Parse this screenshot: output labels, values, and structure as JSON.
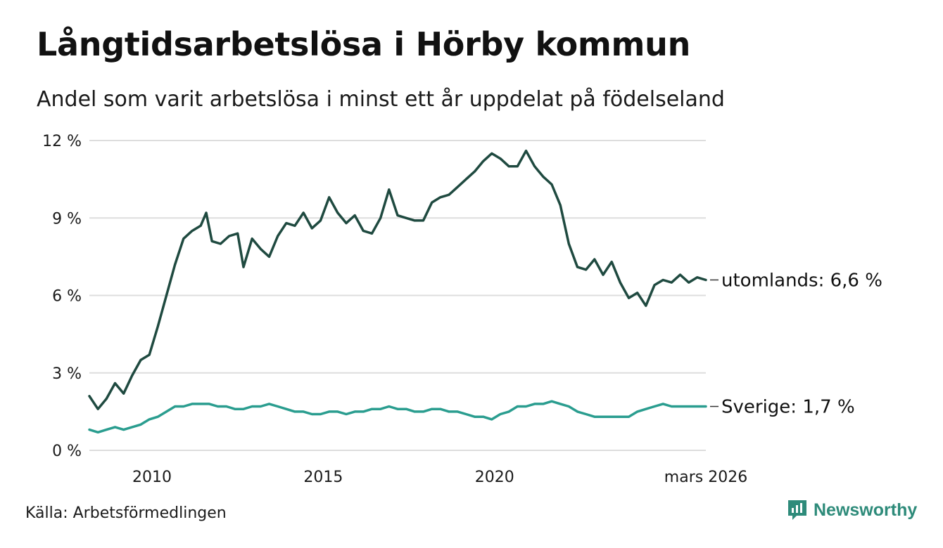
{
  "header": {
    "title": "Långtidsarbetslösa i Hörby kommun",
    "subtitle": "Andel som varit arbetslösa i minst ett år uppdelat på födelseland"
  },
  "footer": {
    "source": "Källa: Arbetsförmedlingen",
    "brand": "Newsworthy"
  },
  "colors": {
    "utomlands": "#1f4a40",
    "sverige": "#2a9d8f",
    "grid": "#dddddd",
    "brand": "#2e8b7a"
  },
  "chart_data": {
    "type": "line",
    "title": "Långtidsarbetslösa i Hörby kommun",
    "xlabel": "",
    "ylabel": "",
    "xlim": [
      2008.17,
      2026.17
    ],
    "ylim": [
      0,
      12
    ],
    "y_ticks": [
      0,
      3,
      6,
      9,
      12
    ],
    "y_tick_labels": [
      "0 %",
      "3 %",
      "6 %",
      "9 %",
      "12 %"
    ],
    "x_ticks": [
      2010,
      2015,
      2020,
      2026.17
    ],
    "x_tick_labels": [
      "2010",
      "2015",
      "2020",
      "mars 2026"
    ],
    "grid": true,
    "series": [
      {
        "name": "utomlands",
        "end_label": "utomlands: 6,6 %",
        "points": [
          [
            2008.17,
            2.1
          ],
          [
            2008.42,
            1.6
          ],
          [
            2008.67,
            2.0
          ],
          [
            2008.92,
            2.6
          ],
          [
            2009.17,
            2.2
          ],
          [
            2009.42,
            2.9
          ],
          [
            2009.67,
            3.5
          ],
          [
            2009.92,
            3.7
          ],
          [
            2010.17,
            4.8
          ],
          [
            2010.42,
            6.0
          ],
          [
            2010.67,
            7.2
          ],
          [
            2010.92,
            8.2
          ],
          [
            2011.17,
            8.5
          ],
          [
            2011.42,
            8.7
          ],
          [
            2011.58,
            9.2
          ],
          [
            2011.75,
            8.1
          ],
          [
            2012.0,
            8.0
          ],
          [
            2012.25,
            8.3
          ],
          [
            2012.5,
            8.4
          ],
          [
            2012.67,
            7.1
          ],
          [
            2012.92,
            8.2
          ],
          [
            2013.17,
            7.8
          ],
          [
            2013.42,
            7.5
          ],
          [
            2013.67,
            8.3
          ],
          [
            2013.92,
            8.8
          ],
          [
            2014.17,
            8.7
          ],
          [
            2014.42,
            9.2
          ],
          [
            2014.67,
            8.6
          ],
          [
            2014.92,
            8.9
          ],
          [
            2015.17,
            9.8
          ],
          [
            2015.42,
            9.2
          ],
          [
            2015.67,
            8.8
          ],
          [
            2015.92,
            9.1
          ],
          [
            2016.17,
            8.5
          ],
          [
            2016.42,
            8.4
          ],
          [
            2016.67,
            9.0
          ],
          [
            2016.92,
            10.1
          ],
          [
            2017.17,
            9.1
          ],
          [
            2017.42,
            9.0
          ],
          [
            2017.67,
            8.9
          ],
          [
            2017.92,
            8.9
          ],
          [
            2018.17,
            9.6
          ],
          [
            2018.42,
            9.8
          ],
          [
            2018.67,
            9.9
          ],
          [
            2018.92,
            10.2
          ],
          [
            2019.17,
            10.5
          ],
          [
            2019.42,
            10.8
          ],
          [
            2019.67,
            11.2
          ],
          [
            2019.92,
            11.5
          ],
          [
            2020.17,
            11.3
          ],
          [
            2020.42,
            11.0
          ],
          [
            2020.67,
            11.0
          ],
          [
            2020.92,
            11.6
          ],
          [
            2021.17,
            11.0
          ],
          [
            2021.42,
            10.6
          ],
          [
            2021.67,
            10.3
          ],
          [
            2021.92,
            9.5
          ],
          [
            2022.17,
            8.0
          ],
          [
            2022.42,
            7.1
          ],
          [
            2022.67,
            7.0
          ],
          [
            2022.92,
            7.4
          ],
          [
            2023.17,
            6.8
          ],
          [
            2023.42,
            7.3
          ],
          [
            2023.67,
            6.5
          ],
          [
            2023.92,
            5.9
          ],
          [
            2024.17,
            6.1
          ],
          [
            2024.42,
            5.6
          ],
          [
            2024.67,
            6.4
          ],
          [
            2024.92,
            6.6
          ],
          [
            2025.17,
            6.5
          ],
          [
            2025.42,
            6.8
          ],
          [
            2025.67,
            6.5
          ],
          [
            2025.92,
            6.7
          ],
          [
            2026.17,
            6.6
          ]
        ]
      },
      {
        "name": "Sverige",
        "end_label": "Sverige: 1,7 %",
        "points": [
          [
            2008.17,
            0.8
          ],
          [
            2008.42,
            0.7
          ],
          [
            2008.67,
            0.8
          ],
          [
            2008.92,
            0.9
          ],
          [
            2009.17,
            0.8
          ],
          [
            2009.42,
            0.9
          ],
          [
            2009.67,
            1.0
          ],
          [
            2009.92,
            1.2
          ],
          [
            2010.17,
            1.3
          ],
          [
            2010.42,
            1.5
          ],
          [
            2010.67,
            1.7
          ],
          [
            2010.92,
            1.7
          ],
          [
            2011.17,
            1.8
          ],
          [
            2011.42,
            1.8
          ],
          [
            2011.67,
            1.8
          ],
          [
            2011.92,
            1.7
          ],
          [
            2012.17,
            1.7
          ],
          [
            2012.42,
            1.6
          ],
          [
            2012.67,
            1.6
          ],
          [
            2012.92,
            1.7
          ],
          [
            2013.17,
            1.7
          ],
          [
            2013.42,
            1.8
          ],
          [
            2013.67,
            1.7
          ],
          [
            2013.92,
            1.6
          ],
          [
            2014.17,
            1.5
          ],
          [
            2014.42,
            1.5
          ],
          [
            2014.67,
            1.4
          ],
          [
            2014.92,
            1.4
          ],
          [
            2015.17,
            1.5
          ],
          [
            2015.42,
            1.5
          ],
          [
            2015.67,
            1.4
          ],
          [
            2015.92,
            1.5
          ],
          [
            2016.17,
            1.5
          ],
          [
            2016.42,
            1.6
          ],
          [
            2016.67,
            1.6
          ],
          [
            2016.92,
            1.7
          ],
          [
            2017.17,
            1.6
          ],
          [
            2017.42,
            1.6
          ],
          [
            2017.67,
            1.5
          ],
          [
            2017.92,
            1.5
          ],
          [
            2018.17,
            1.6
          ],
          [
            2018.42,
            1.6
          ],
          [
            2018.67,
            1.5
          ],
          [
            2018.92,
            1.5
          ],
          [
            2019.17,
            1.4
          ],
          [
            2019.42,
            1.3
          ],
          [
            2019.67,
            1.3
          ],
          [
            2019.92,
            1.2
          ],
          [
            2020.17,
            1.4
          ],
          [
            2020.42,
            1.5
          ],
          [
            2020.67,
            1.7
          ],
          [
            2020.92,
            1.7
          ],
          [
            2021.17,
            1.8
          ],
          [
            2021.42,
            1.8
          ],
          [
            2021.67,
            1.9
          ],
          [
            2021.92,
            1.8
          ],
          [
            2022.17,
            1.7
          ],
          [
            2022.42,
            1.5
          ],
          [
            2022.67,
            1.4
          ],
          [
            2022.92,
            1.3
          ],
          [
            2023.17,
            1.3
          ],
          [
            2023.42,
            1.3
          ],
          [
            2023.67,
            1.3
          ],
          [
            2023.92,
            1.3
          ],
          [
            2024.17,
            1.5
          ],
          [
            2024.42,
            1.6
          ],
          [
            2024.67,
            1.7
          ],
          [
            2024.92,
            1.8
          ],
          [
            2025.17,
            1.7
          ],
          [
            2025.42,
            1.7
          ],
          [
            2025.67,
            1.7
          ],
          [
            2025.92,
            1.7
          ],
          [
            2026.17,
            1.7
          ]
        ]
      }
    ]
  }
}
